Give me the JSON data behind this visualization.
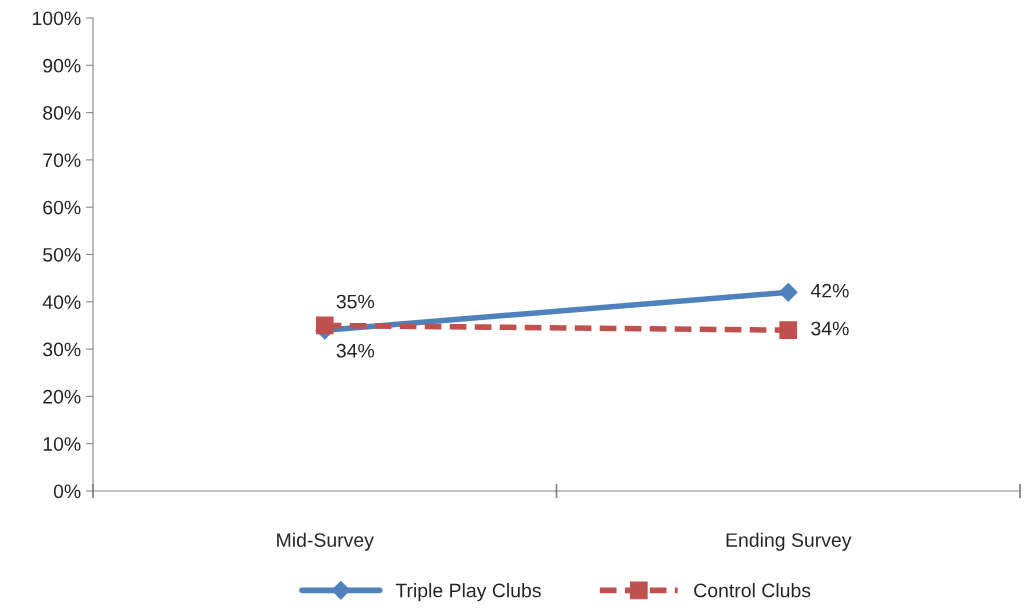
{
  "chart_data": {
    "type": "line",
    "categories": [
      "Mid-Survey",
      "Ending Survey"
    ],
    "series": [
      {
        "name": "Triple Play Clubs",
        "color": "#4f81bd",
        "values": [
          34,
          42
        ],
        "marker": "diamond",
        "line_style": "solid",
        "value_labels": [
          "34%",
          "42%"
        ]
      },
      {
        "name": "Control Clubs",
        "color": "#c0504d",
        "values": [
          35,
          34
        ],
        "marker": "square",
        "line_style": "dashed",
        "value_labels": [
          "35%",
          "34%"
        ]
      }
    ],
    "ylim": [
      0,
      100
    ],
    "yticks": [
      {
        "value": 0,
        "label": "0%"
      },
      {
        "value": 10,
        "label": "10%"
      },
      {
        "value": 20,
        "label": "20%"
      },
      {
        "value": 30,
        "label": "30%"
      },
      {
        "value": 40,
        "label": "40%"
      },
      {
        "value": 50,
        "label": "50%"
      },
      {
        "value": 60,
        "label": "60%"
      },
      {
        "value": 70,
        "label": "70%"
      },
      {
        "value": 80,
        "label": "80%"
      },
      {
        "value": 90,
        "label": "90%"
      },
      {
        "value": 100,
        "label": "100%"
      }
    ],
    "grid": false,
    "legend": "bottom"
  }
}
